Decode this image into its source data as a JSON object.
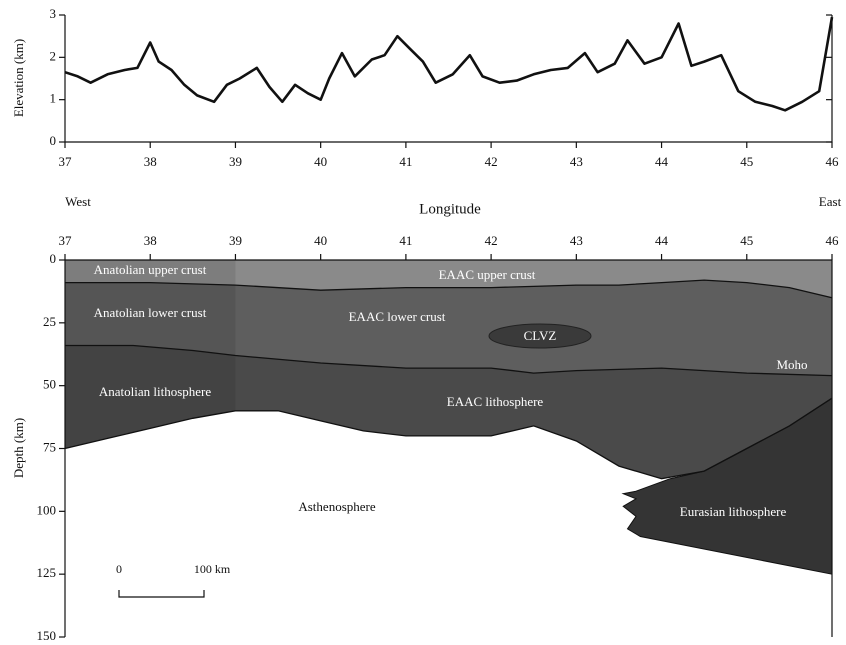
{
  "chart_data": [
    {
      "type": "line",
      "y_label": "Elevation (km)",
      "x": [
        37,
        37.15,
        37.3,
        37.5,
        37.7,
        37.85,
        38,
        38.1,
        38.25,
        38.4,
        38.55,
        38.75,
        38.9,
        39.05,
        39.25,
        39.4,
        39.55,
        39.7,
        39.85,
        40,
        40.1,
        40.25,
        40.4,
        40.6,
        40.75,
        40.9,
        41.05,
        41.2,
        41.35,
        41.55,
        41.75,
        41.9,
        42.1,
        42.3,
        42.5,
        42.7,
        42.9,
        43.1,
        43.25,
        43.45,
        43.6,
        43.8,
        44,
        44.2,
        44.35,
        44.5,
        44.7,
        44.9,
        45.1,
        45.3,
        45.45,
        45.65,
        45.85,
        46
      ],
      "values": [
        1.65,
        1.55,
        1.4,
        1.6,
        1.7,
        1.75,
        2.35,
        1.9,
        1.7,
        1.35,
        1.1,
        0.95,
        1.35,
        1.5,
        1.75,
        1.3,
        0.95,
        1.35,
        1.15,
        1.0,
        1.5,
        2.1,
        1.55,
        1.95,
        2.05,
        2.5,
        2.2,
        1.9,
        1.4,
        1.6,
        2.05,
        1.55,
        1.4,
        1.45,
        1.6,
        1.7,
        1.75,
        2.1,
        1.65,
        1.85,
        2.4,
        1.85,
        2.0,
        2.8,
        1.8,
        1.9,
        2.05,
        1.2,
        0.95,
        0.85,
        0.75,
        0.95,
        1.2,
        2.95
      ],
      "color": "#111111",
      "xlim": [
        37,
        46
      ],
      "ylim": [
        0,
        3
      ],
      "xticks": [
        37,
        38,
        39,
        40,
        41,
        42,
        43,
        44,
        45,
        46
      ],
      "yticks": [
        0,
        1,
        2,
        3
      ],
      "annotations": [
        "West",
        "Longitude",
        "East"
      ]
    },
    {
      "type": "cross-section",
      "y_label": "Depth (km)",
      "y_inverted": true,
      "xlim": [
        37,
        46
      ],
      "ylim": [
        0,
        150
      ],
      "xticks": [
        37,
        38,
        39,
        40,
        41,
        42,
        43,
        44,
        45,
        46
      ],
      "yticks": [
        0,
        25,
        50,
        75,
        100,
        125,
        150
      ],
      "lines": [
        {
          "x": [
            37,
            38,
            39,
            40,
            41,
            42,
            43,
            43.5,
            44,
            44.5,
            45,
            45.5,
            46
          ],
          "values": [
            9,
            9,
            10,
            12,
            11,
            11,
            10,
            10,
            9,
            8,
            9,
            11,
            15
          ]
        },
        {
          "name": "Moho",
          "x": [
            37,
            37.8,
            38.5,
            39,
            40,
            41,
            42,
            42.5,
            43,
            44,
            45,
            46
          ],
          "values": [
            34,
            34,
            36,
            38,
            41,
            43,
            43,
            45,
            44,
            43,
            45,
            46
          ]
        },
        {
          "x": [
            37,
            37.5,
            38,
            38.5,
            39,
            39.5,
            40,
            40.5,
            41,
            41.5,
            42,
            42.5,
            43,
            43.5,
            44,
            44.5,
            45,
            45.5,
            46
          ],
          "values": [
            75,
            71,
            67,
            63,
            60,
            60,
            64,
            68,
            70,
            70,
            70,
            66,
            72,
            82,
            87,
            84,
            75,
            66,
            55
          ]
        }
      ],
      "eurasian_outline": {
        "x": [
          43.7,
          44.1,
          44.5,
          45,
          45.5,
          46,
          46,
          43.75,
          43.6,
          43.7,
          43.55,
          43.7,
          43.55
        ],
        "values": [
          92,
          87,
          84,
          75,
          66,
          55,
          125,
          110,
          107,
          102,
          98,
          95,
          93
        ]
      },
      "colors": {
        "upper_crust": "#8a8a8a",
        "lower_crust": "#5e5e5e",
        "lithosphere": "#4a4a4a",
        "eurasian": "#343434",
        "clvz": "#3a3a3a"
      },
      "regions": [
        "Anatolian upper crust",
        "EAAC upper crust",
        "Anatolian lower crust",
        "EAAC lower crust",
        "CLVZ",
        "Anatolian lithosphere",
        "EAAC lithosphere",
        "Asthenosphere",
        "Eurasian lithosphere"
      ],
      "scale_bar": [
        "0",
        "100 km"
      ]
    }
  ]
}
